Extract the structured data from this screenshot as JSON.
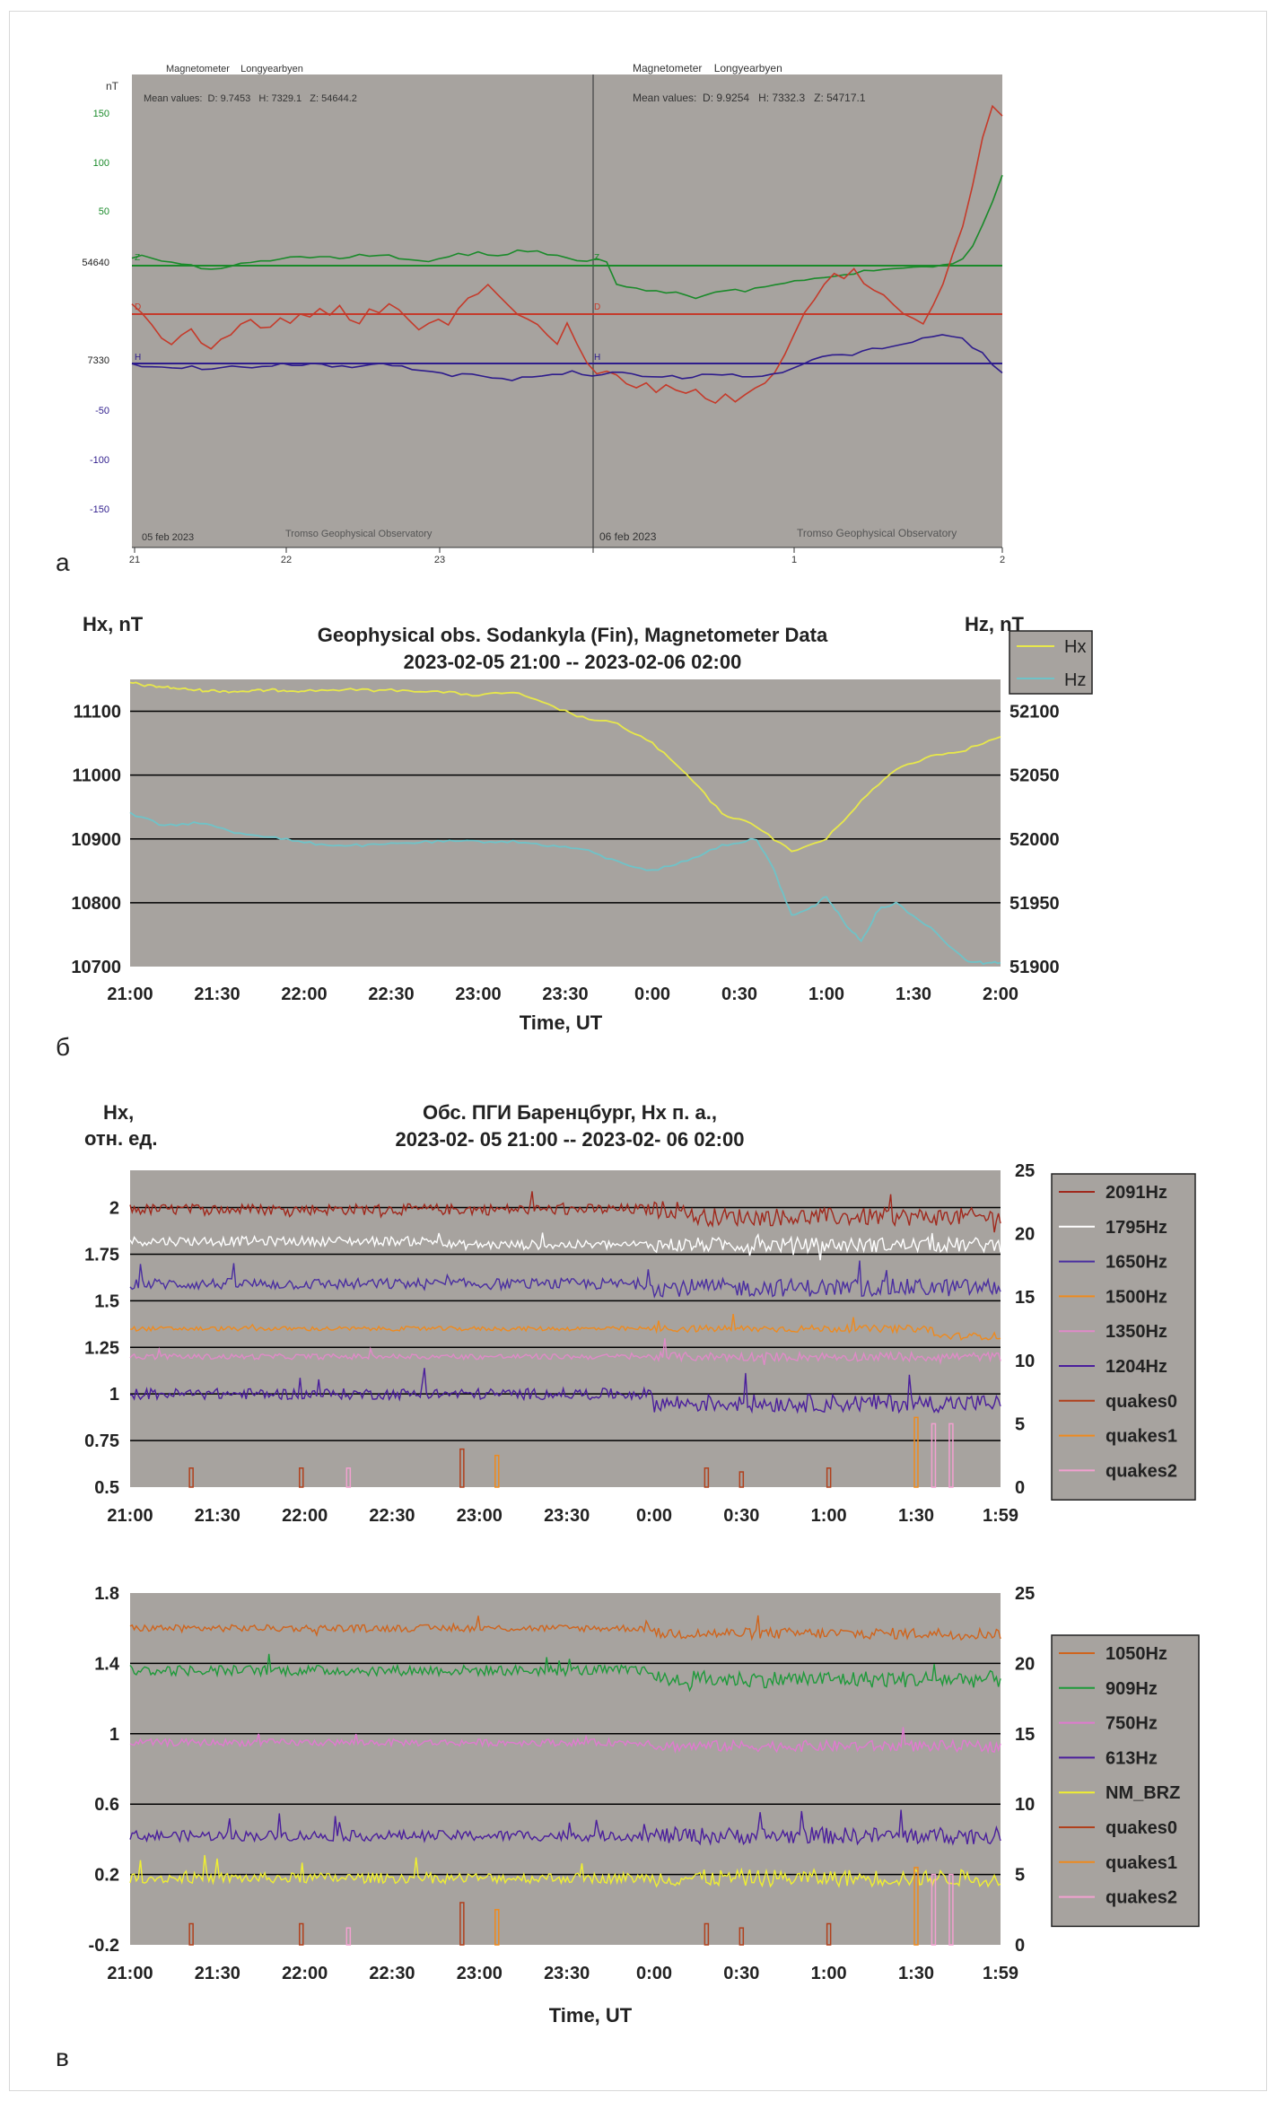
{
  "panel_letters": [
    "а",
    "б",
    "в"
  ],
  "colors": {
    "plot_bg": "#a7a39f",
    "grid": "#000000",
    "frame_bg": "#ffffff"
  },
  "chart_data": [
    {
      "id": "a",
      "type": "line",
      "header_left": {
        "title": "Magnetometer    Longyearbyen",
        "mean": "Mean values:  D: 9.7453   H: 7329.1   Z: 54644.2",
        "date": "05 feb 2023",
        "credit": "Tromso Geophysical Observatory"
      },
      "header_right": {
        "title": "Magnetometer    Longyearbyen",
        "mean": "Mean values:  D: 9.9254   H: 7332.3   Z: 54717.1",
        "date": "06 feb 2023",
        "credit": "Tromso Geophysical Observatory"
      },
      "ylabel": "nT",
      "y_ticks": [
        "150",
        "100",
        "50",
        "54640",
        "",
        "7330",
        "-50",
        "-100",
        "-150"
      ],
      "x_ticks": [
        "21",
        "22",
        "23",
        "",
        "1",
        "2"
      ],
      "series_labels": [
        "Z",
        "D",
        "H",
        "Z",
        "D",
        "H"
      ],
      "series": [
        {
          "key": "Z",
          "color": "#1a8a2a",
          "values": [
            8,
            10,
            8,
            6,
            4,
            2,
            0,
            -2,
            -3,
            -2,
            0,
            2,
            4,
            4,
            5,
            6,
            8,
            10,
            9,
            10,
            8,
            7,
            9,
            11,
            9,
            10,
            12,
            8,
            6,
            5,
            5,
            6,
            8,
            12,
            10,
            14,
            12,
            10,
            12,
            15,
            14,
            16,
            12,
            10,
            8,
            6,
            5,
            6,
            4,
            -20,
            -21,
            -23,
            -25,
            -26,
            -28,
            -27,
            -30,
            -32,
            -30,
            -28,
            -26,
            -25,
            -26,
            -24,
            -22,
            -20,
            -18,
            -16,
            -14,
            -13,
            -12,
            -10,
            -9,
            -8,
            -6,
            -5,
            -4,
            -3,
            -2,
            -2,
            -1,
            0,
            0,
            2,
            8,
            20,
            40,
            65,
            92
          ]
        },
        {
          "key": "D",
          "color": "#c53a2a",
          "values": [
            10,
            2,
            -10,
            -25,
            -30,
            -20,
            -15,
            -30,
            -35,
            -25,
            -20,
            -10,
            -5,
            -15,
            -12,
            -5,
            -10,
            0,
            -2,
            5,
            0,
            8,
            -5,
            -10,
            5,
            0,
            10,
            5,
            -5,
            -15,
            -8,
            -5,
            -10,
            5,
            15,
            20,
            30,
            20,
            10,
            0,
            -5,
            -10,
            -20,
            -30,
            -10,
            -30,
            -50,
            -60,
            -58,
            -62,
            -70,
            -75,
            -70,
            -80,
            -72,
            -78,
            -80,
            -75,
            -85,
            -90,
            -80,
            -88,
            -82,
            -75,
            -70,
            -60,
            -40,
            -20,
            0,
            15,
            30,
            40,
            35,
            45,
            30,
            25,
            20,
            10,
            0,
            -5,
            -10,
            10,
            30,
            60,
            90,
            130,
            180,
            210,
            200
          ]
        },
        {
          "key": "H",
          "color": "#2e1c8c",
          "values": [
            0,
            -2,
            -4,
            -3,
            -5,
            -4,
            -3,
            -6,
            -5,
            -4,
            -2,
            -3,
            -5,
            -4,
            -2,
            -1,
            -3,
            -2,
            0,
            -1,
            -3,
            -2,
            -4,
            -3,
            -1,
            0,
            -2,
            -3,
            -5,
            -6,
            -8,
            -10,
            -12,
            -11,
            -12,
            -13,
            -15,
            -14,
            -16,
            -15,
            -14,
            -13,
            -12,
            -10,
            -8,
            -10,
            -12,
            -10,
            -8,
            -9,
            -10,
            -12,
            -14,
            -13,
            -12,
            -15,
            -14,
            -12,
            -10,
            -11,
            -12,
            -13,
            -14,
            -12,
            -10,
            -8,
            -5,
            0,
            3,
            6,
            8,
            10,
            9,
            12,
            15,
            16,
            18,
            20,
            22,
            25,
            28,
            30,
            28,
            25,
            15,
            10,
            -2,
            -10
          ]
        }
      ],
      "reference_lines": {
        "Z": 54640,
        "D": 0,
        "H": 7330
      }
    },
    {
      "id": "b",
      "type": "line",
      "title": "Geophysical obs. Sodankyla (Fin), Magnetometer Data",
      "subtitle": "2023-02-05 21:00 -- 2023-02-06 02:00",
      "ylabel": "Hx, nT",
      "y2label": "Hz, nT",
      "xlabel": "Time, UT",
      "x_ticks": [
        "21:00",
        "21:30",
        "22:00",
        "22:30",
        "23:00",
        "23:30",
        "0:00",
        "0:30",
        "1:00",
        "1:30",
        "2:00"
      ],
      "y_ticks": [
        "11100",
        "11000",
        "10900",
        "10800",
        "10700"
      ],
      "y2_ticks": [
        "52100",
        "52050",
        "52000",
        "51950",
        "51900"
      ],
      "ylim": [
        10700,
        11150
      ],
      "y2lim": [
        51900,
        52125
      ],
      "series": [
        {
          "name": "Hx",
          "axis": "left",
          "color": "#e8e84a",
          "x": [
            0,
            0.1,
            0.2,
            0.3,
            0.4,
            0.5,
            0.6,
            0.7,
            0.8,
            0.9,
            1,
            1.2,
            1.4,
            1.6,
            1.8,
            2,
            2.2,
            2.4,
            2.6,
            2.8,
            3,
            3.2,
            3.4,
            3.6,
            3.8,
            4,
            4.2,
            4.4,
            4.6,
            4.8,
            5
          ],
          "values": [
            11145,
            11140,
            11138,
            11135,
            11133,
            11132,
            11131,
            11132,
            11133,
            11133,
            11132,
            11134,
            11133,
            11133,
            11130,
            11125,
            11130,
            11110,
            11090,
            11080,
            11050,
            11000,
            10940,
            10920,
            10880,
            10900,
            10960,
            11010,
            11030,
            11040,
            11060
          ]
        },
        {
          "name": "Hz",
          "axis": "right",
          "color": "#6fc3c8",
          "x": [
            0,
            0.2,
            0.4,
            0.6,
            0.8,
            1,
            1.2,
            1.4,
            1.6,
            1.8,
            2,
            2.2,
            2.4,
            2.6,
            2.8,
            3,
            3.2,
            3.4,
            3.6,
            3.7,
            3.8,
            3.9,
            4,
            4.1,
            4.2,
            4.3,
            4.4,
            4.6,
            4.8,
            4.9,
            5
          ],
          "values": [
            52020,
            52010,
            52013,
            52005,
            52002,
            51997,
            51995,
            51995,
            51997,
            51998,
            51998,
            51998,
            51995,
            51992,
            51982,
            51975,
            51983,
            51995,
            52000,
            51975,
            51940,
            51945,
            51955,
            51935,
            51920,
            51945,
            51950,
            51930,
            51905,
            51903,
            51903
          ]
        }
      ]
    },
    {
      "id": "c1",
      "type": "line",
      "title": "Обс. ПГИ Баренцбург, Нх п. а.,",
      "subtitle": "2023-02- 05 21:00 -- 2023-02- 06 02:00",
      "ylabel_line1": "Hx,",
      "ylabel_line2": "отн. ед.",
      "x_ticks": [
        "21:00",
        "21:30",
        "22:00",
        "22:30",
        "23:00",
        "23:30",
        "0:00",
        "0:30",
        "1:00",
        "1:30",
        "1:59"
      ],
      "y_ticks": [
        "2",
        "1.75",
        "1.5",
        "1.25",
        "1",
        "0.75",
        "0.5"
      ],
      "y2_ticks": [
        "25",
        "20",
        "15",
        "10",
        "5",
        "0"
      ],
      "ylim": [
        0.5,
        2.2
      ],
      "y2lim": [
        0,
        25
      ],
      "series": [
        {
          "name": "2091Hz",
          "color": "#a0281c",
          "base": 1.99,
          "noise": 0.03,
          "step_after": 3.2,
          "step": -0.04
        },
        {
          "name": "1795Hz",
          "color": "#ffffff",
          "base": 1.82,
          "noise": 0.025,
          "step_after": 1.8,
          "step": -0.02
        },
        {
          "name": "1650Hz",
          "color": "#4a2ea0",
          "base": 1.59,
          "noise": 0.03,
          "step_after": 3.0,
          "step": -0.02
        },
        {
          "name": "1500Hz",
          "color": "#ee8a1e",
          "base": 1.35,
          "noise": 0.012,
          "step_after": 4.6,
          "step": -0.04
        },
        {
          "name": "1350Hz",
          "color": "#e08ac8",
          "base": 1.2,
          "noise": 0.015,
          "step_after": 4.8,
          "step": 0.0
        },
        {
          "name": "1204Hz",
          "color": "#4a1e9c",
          "base": 1.0,
          "noise": 0.03,
          "step_after": 3.0,
          "step": -0.05
        },
        {
          "name": "quakes0",
          "color": "#b0401c"
        },
        {
          "name": "quakes1",
          "color": "#ee8a1e"
        },
        {
          "name": "quakes2",
          "color": "#f2a0d0"
        }
      ],
      "quakes": [
        {
          "t": 0.35,
          "mag": 1.5,
          "cls": 0
        },
        {
          "t": 0.98,
          "mag": 1.5,
          "cls": 0
        },
        {
          "t": 1.25,
          "mag": 1.5,
          "cls": 2
        },
        {
          "t": 1.9,
          "mag": 3,
          "cls": 0
        },
        {
          "t": 2.1,
          "mag": 2.5,
          "cls": 1
        },
        {
          "t": 3.3,
          "mag": 1.5,
          "cls": 0
        },
        {
          "t": 3.5,
          "mag": 1.2,
          "cls": 0
        },
        {
          "t": 4.0,
          "mag": 1.5,
          "cls": 0
        },
        {
          "t": 4.5,
          "mag": 5.5,
          "cls": 1
        },
        {
          "t": 4.6,
          "mag": 5.0,
          "cls": 2
        },
        {
          "t": 4.7,
          "mag": 5.0,
          "cls": 2
        }
      ]
    },
    {
      "id": "c2",
      "type": "line",
      "xlabel": "Time, UT",
      "x_ticks": [
        "21:00",
        "21:30",
        "22:00",
        "22:30",
        "23:00",
        "23:30",
        "0:00",
        "0:30",
        "1:00",
        "1:30",
        "1:59"
      ],
      "y_ticks": [
        "1.8",
        "1.4",
        "1",
        "0.6",
        "0.2",
        "-0.2"
      ],
      "y2_ticks": [
        "25",
        "20",
        "15",
        "10",
        "5",
        "0"
      ],
      "ylim": [
        -0.2,
        1.8
      ],
      "y2lim": [
        0,
        25
      ],
      "series": [
        {
          "name": "1050Hz",
          "color": "#d0641c",
          "base": 1.6,
          "noise": 0.02,
          "step_after": 3.0,
          "step": -0.03
        },
        {
          "name": "909Hz",
          "color": "#1e9a3a",
          "base": 1.36,
          "noise": 0.03,
          "step_after": 3.0,
          "step": -0.05
        },
        {
          "name": "750Hz",
          "color": "#e07ad0",
          "base": 0.95,
          "noise": 0.02,
          "step_after": 3.0,
          "step": -0.02
        },
        {
          "name": "613Hz",
          "color": "#4a1e9c",
          "base": 0.42,
          "noise": 0.03,
          "step_after": 3.0,
          "step": 0.0
        },
        {
          "name": "NM_BRZ",
          "color": "#f0f030",
          "base": 0.18,
          "noise": 0.03,
          "step_after": 9,
          "step": 0
        },
        {
          "name": "quakes0",
          "color": "#b0401c"
        },
        {
          "name": "quakes1",
          "color": "#ee8a1e"
        },
        {
          "name": "quakes2",
          "color": "#f2a0d0"
        }
      ],
      "quakes": [
        {
          "t": 0.35,
          "mag": 1.5,
          "cls": 0
        },
        {
          "t": 0.98,
          "mag": 1.5,
          "cls": 0
        },
        {
          "t": 1.25,
          "mag": 1.2,
          "cls": 2
        },
        {
          "t": 1.9,
          "mag": 3,
          "cls": 0
        },
        {
          "t": 2.1,
          "mag": 2.5,
          "cls": 1
        },
        {
          "t": 3.3,
          "mag": 1.5,
          "cls": 0
        },
        {
          "t": 3.5,
          "mag": 1.2,
          "cls": 0
        },
        {
          "t": 4.0,
          "mag": 1.5,
          "cls": 0
        },
        {
          "t": 4.5,
          "mag": 5.5,
          "cls": 1
        },
        {
          "t": 4.6,
          "mag": 5.0,
          "cls": 2
        },
        {
          "t": 4.7,
          "mag": 5.0,
          "cls": 2
        }
      ]
    }
  ]
}
